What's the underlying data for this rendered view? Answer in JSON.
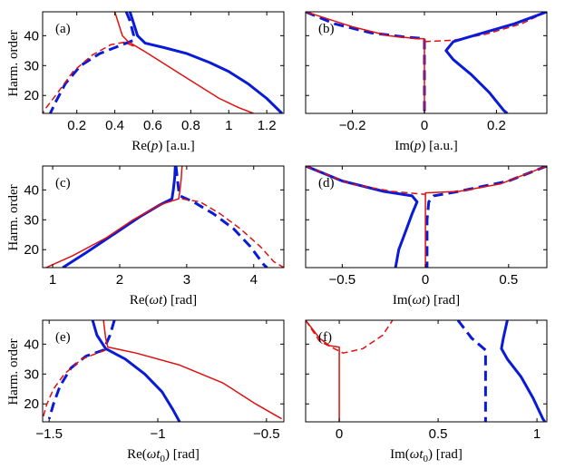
{
  "figure": {
    "ylabel": "Harm. order"
  },
  "colors": {
    "blue": "#0a1bd8",
    "red": "#e01010"
  },
  "chart_data": [
    {
      "type": "line",
      "tag": "(a)",
      "xlabel_pre": "Re(",
      "xlabel_var": "p",
      "xlabel_post": ") [a.u.]",
      "xlim": [
        0.02,
        1.29
      ],
      "ylim": [
        14,
        48
      ],
      "xticks": [
        0.2,
        0.4,
        0.6,
        0.8,
        1,
        1.2
      ],
      "xtick_labels": [
        "0.2",
        "0.4",
        "0.6",
        "0.8",
        "1",
        "1.2"
      ],
      "yticks": [
        20,
        30,
        40
      ],
      "ytick_labels": [
        "20",
        "30",
        "40"
      ],
      "series": [
        {
          "name": "blue solid",
          "color": "blue",
          "dash": false,
          "width": 3,
          "points": [
            [
              0.48,
              48
            ],
            [
              0.5,
              44
            ],
            [
              0.52,
              40
            ],
            [
              0.56,
              37.5
            ],
            [
              0.66,
              36
            ],
            [
              0.78,
              34
            ],
            [
              0.9,
              31
            ],
            [
              1.0,
              28
            ],
            [
              1.1,
              24
            ],
            [
              1.2,
              19
            ],
            [
              1.28,
              14
            ]
          ]
        },
        {
          "name": "blue dashed",
          "color": "blue",
          "dash": true,
          "width": 3,
          "points": [
            [
              0.46,
              48
            ],
            [
              0.48,
              45
            ],
            [
              0.5,
              40
            ],
            [
              0.5,
              38.5
            ],
            [
              0.44,
              37
            ],
            [
              0.32,
              34
            ],
            [
              0.22,
              30
            ],
            [
              0.14,
              24
            ],
            [
              0.09,
              18
            ],
            [
              0.06,
              14
            ]
          ]
        },
        {
          "name": "red solid",
          "color": "red",
          "dash": false,
          "width": 1.5,
          "points": [
            [
              0.4,
              48
            ],
            [
              0.42,
              44
            ],
            [
              0.44,
              40
            ],
            [
              0.47,
              38
            ],
            [
              0.55,
              35
            ],
            [
              0.65,
              31
            ],
            [
              0.75,
              27
            ],
            [
              0.85,
              23
            ],
            [
              0.95,
              19
            ],
            [
              1.05,
              16
            ],
            [
              1.13,
              14
            ]
          ]
        },
        {
          "name": "red dashed",
          "color": "red",
          "dash": true,
          "width": 1.5,
          "points": [
            [
              0.5,
              36.5
            ],
            [
              0.45,
              37.8
            ],
            [
              0.38,
              37
            ],
            [
              0.28,
              33.5
            ],
            [
              0.18,
              28
            ],
            [
              0.1,
              21
            ],
            [
              0.04,
              16
            ],
            [
              0.02,
              14
            ]
          ]
        }
      ]
    },
    {
      "type": "line",
      "tag": "(b)",
      "xlabel_pre": "Im(",
      "xlabel_var": "p",
      "xlabel_post": ") [a.u.]",
      "xlim": [
        -0.33,
        0.34
      ],
      "ylim": [
        14,
        48
      ],
      "xticks": [
        -0.2,
        0,
        0.2
      ],
      "xtick_labels": [
        "−0.2",
        "0",
        "0.2"
      ],
      "yticks": [
        20,
        30,
        40
      ],
      "ytick_labels": [
        "20",
        "30",
        "40"
      ],
      "series": [
        {
          "name": "blue dashed",
          "color": "blue",
          "dash": true,
          "width": 3,
          "points": [
            [
              -0.33,
              48
            ],
            [
              -0.25,
              44
            ],
            [
              -0.15,
              41
            ],
            [
              -0.05,
              39.5
            ],
            [
              0.0,
              39
            ],
            [
              0.0,
              35
            ],
            [
              0.0,
              25
            ],
            [
              0.0,
              14
            ]
          ]
        },
        {
          "name": "red solid",
          "color": "red",
          "dash": false,
          "width": 1.5,
          "points": [
            [
              -0.33,
              48
            ],
            [
              -0.2,
              43
            ],
            [
              -0.1,
              40
            ],
            [
              -0.02,
              39
            ],
            [
              0.0,
              39
            ],
            [
              0.0,
              30
            ],
            [
              0.0,
              14
            ]
          ]
        },
        {
          "name": "red dashed",
          "color": "red",
          "dash": true,
          "width": 1.5,
          "points": [
            [
              0.0,
              38
            ],
            [
              0.08,
              38.5
            ],
            [
              0.17,
              40.5
            ],
            [
              0.27,
              44
            ],
            [
              0.34,
              48
            ]
          ]
        },
        {
          "name": "blue solid",
          "color": "blue",
          "dash": false,
          "width": 3,
          "points": [
            [
              0.34,
              48
            ],
            [
              0.25,
              44
            ],
            [
              0.15,
              40.5
            ],
            [
              0.08,
              38
            ],
            [
              0.06,
              35
            ],
            [
              0.08,
              32
            ],
            [
              0.13,
              27
            ],
            [
              0.18,
              21
            ],
            [
              0.22,
              15
            ],
            [
              0.23,
              14
            ]
          ]
        }
      ]
    },
    {
      "type": "line",
      "tag": "(c)",
      "xlabel_pre": "Re(",
      "xlabel_var": "ωt",
      "xlabel_post": ") [rad]",
      "xlim": [
        0.85,
        4.45
      ],
      "ylim": [
        14,
        48
      ],
      "xticks": [
        1,
        2,
        3,
        4
      ],
      "xtick_labels": [
        "1",
        "2",
        "3",
        "4"
      ],
      "yticks": [
        20,
        30,
        40
      ],
      "ytick_labels": [
        "20",
        "30",
        "40"
      ],
      "series": [
        {
          "name": "blue solid",
          "color": "blue",
          "dash": false,
          "width": 3,
          "points": [
            [
              1.15,
              14
            ],
            [
              1.5,
              19
            ],
            [
              1.9,
              25
            ],
            [
              2.3,
              31
            ],
            [
              2.6,
              35
            ],
            [
              2.78,
              37
            ],
            [
              2.8,
              40
            ],
            [
              2.82,
              44
            ],
            [
              2.83,
              48
            ]
          ]
        },
        {
          "name": "blue dashed",
          "color": "blue",
          "dash": true,
          "width": 3,
          "points": [
            [
              2.84,
              48
            ],
            [
              2.86,
              44
            ],
            [
              2.88,
              40
            ],
            [
              2.9,
              38
            ],
            [
              3.1,
              36
            ],
            [
              3.4,
              32
            ],
            [
              3.7,
              27
            ],
            [
              3.95,
              21
            ],
            [
              4.15,
              15
            ],
            [
              4.2,
              14
            ]
          ]
        },
        {
          "name": "red solid",
          "color": "red",
          "dash": false,
          "width": 1.5,
          "points": [
            [
              0.9,
              14
            ],
            [
              1.3,
              18
            ],
            [
              1.8,
              24
            ],
            [
              2.2,
              30
            ],
            [
              2.6,
              35
            ],
            [
              2.88,
              37
            ],
            [
              2.9,
              40
            ],
            [
              2.92,
              44
            ],
            [
              2.93,
              48
            ]
          ]
        },
        {
          "name": "red dashed",
          "color": "red",
          "dash": true,
          "width": 1.5,
          "points": [
            [
              2.93,
              37
            ],
            [
              3.2,
              36
            ],
            [
              3.5,
              32
            ],
            [
              3.8,
              27
            ],
            [
              4.1,
              21
            ],
            [
              4.3,
              16
            ],
            [
              4.45,
              14
            ]
          ]
        }
      ]
    },
    {
      "type": "line",
      "tag": "(d)",
      "xlabel_pre": "Im(",
      "xlabel_var": "ωt",
      "xlabel_post": ") [rad]",
      "xlim": [
        -0.72,
        0.73
      ],
      "ylim": [
        14,
        48
      ],
      "xticks": [
        -0.5,
        0,
        0.5
      ],
      "xtick_labels": [
        "−0.5",
        "0",
        "0.5"
      ],
      "yticks": [
        20,
        30,
        40
      ],
      "ytick_labels": [
        "20",
        "30",
        "40"
      ],
      "series": [
        {
          "name": "blue solid",
          "color": "blue",
          "dash": false,
          "width": 3,
          "points": [
            [
              -0.72,
              48
            ],
            [
              -0.5,
              43
            ],
            [
              -0.25,
              39.5
            ],
            [
              -0.08,
              38
            ],
            [
              -0.05,
              36
            ],
            [
              -0.08,
              32
            ],
            [
              -0.12,
              26
            ],
            [
              -0.16,
              20
            ],
            [
              -0.18,
              14
            ]
          ]
        },
        {
          "name": "blue dashed",
          "color": "blue",
          "dash": true,
          "width": 3,
          "points": [
            [
              0.73,
              48
            ],
            [
              0.5,
              43
            ],
            [
              0.2,
              39.5
            ],
            [
              0.05,
              38
            ],
            [
              0.02,
              36
            ],
            [
              0.01,
              30
            ],
            [
              0.01,
              14
            ]
          ]
        },
        {
          "name": "red solid",
          "color": "red",
          "dash": false,
          "width": 1.5,
          "points": [
            [
              0.73,
              48
            ],
            [
              0.45,
              42
            ],
            [
              0.2,
              39.5
            ],
            [
              0.0,
              39
            ],
            [
              0.0,
              30
            ],
            [
              0.0,
              14
            ]
          ]
        },
        {
          "name": "red dashed",
          "color": "red",
          "dash": true,
          "width": 1.5,
          "points": [
            [
              -0.72,
              48
            ],
            [
              -0.45,
              42
            ],
            [
              -0.2,
              39.5
            ],
            [
              0.0,
              38.5
            ]
          ]
        }
      ]
    },
    {
      "type": "line",
      "tag": "(e)",
      "xlabel_pre": "Re(",
      "xlabel_var": "ωt",
      "xlabel_sub": "0",
      "xlabel_post": ") [rad]",
      "xlim": [
        -1.53,
        -0.42
      ],
      "ylim": [
        14,
        48
      ],
      "xticks": [
        -1.5,
        -1,
        -0.5
      ],
      "xtick_labels": [
        "−1.5",
        "−1",
        "−0.5"
      ],
      "yticks": [
        20,
        30,
        40
      ],
      "ytick_labels": [
        "20",
        "30",
        "40"
      ],
      "series": [
        {
          "name": "blue solid",
          "color": "blue",
          "dash": false,
          "width": 3,
          "points": [
            [
              -1.3,
              48
            ],
            [
              -1.28,
              43
            ],
            [
              -1.24,
              38.5
            ],
            [
              -1.15,
              35
            ],
            [
              -1.06,
              30
            ],
            [
              -0.98,
              24
            ],
            [
              -0.93,
              18
            ],
            [
              -0.9,
              14
            ]
          ]
        },
        {
          "name": "blue dashed",
          "color": "blue",
          "dash": true,
          "width": 3,
          "points": [
            [
              -1.2,
              48
            ],
            [
              -1.22,
              43
            ],
            [
              -1.25,
              38
            ],
            [
              -1.33,
              36
            ],
            [
              -1.4,
              32
            ],
            [
              -1.45,
              26
            ],
            [
              -1.48,
              20
            ],
            [
              -1.5,
              15
            ]
          ]
        },
        {
          "name": "red solid",
          "color": "red",
          "dash": false,
          "width": 1.5,
          "points": [
            [
              -1.25,
              48
            ],
            [
              -1.24,
              42
            ],
            [
              -1.23,
              39
            ],
            [
              -1.1,
              37
            ],
            [
              -0.9,
              33
            ],
            [
              -0.7,
              27
            ],
            [
              -0.55,
              20
            ],
            [
              -0.43,
              15
            ]
          ]
        },
        {
          "name": "red dashed",
          "color": "red",
          "dash": true,
          "width": 1.5,
          "points": [
            [
              -1.24,
              38
            ],
            [
              -1.35,
              35
            ],
            [
              -1.43,
              30
            ],
            [
              -1.48,
              25
            ],
            [
              -1.51,
              20
            ],
            [
              -1.53,
              15
            ]
          ]
        }
      ]
    },
    {
      "type": "line",
      "tag": "(f)",
      "xlabel_pre": "Im(",
      "xlabel_var": "ωt",
      "xlabel_sub": "0",
      "xlabel_post": ") [rad]",
      "xlim": [
        -0.17,
        1.05
      ],
      "ylim": [
        14,
        48
      ],
      "xticks": [
        0,
        0.5,
        1
      ],
      "xtick_labels": [
        "0",
        "0.5",
        "1"
      ],
      "yticks": [
        20,
        30,
        40
      ],
      "ytick_labels": [
        "20",
        "30",
        "40"
      ],
      "series": [
        {
          "name": "red solid",
          "color": "red",
          "dash": false,
          "width": 1.5,
          "points": [
            [
              -0.17,
              48
            ],
            [
              -0.1,
              42
            ],
            [
              -0.05,
              39.5
            ],
            [
              0.0,
              39
            ],
            [
              0.0,
              30
            ],
            [
              0.0,
              14
            ]
          ]
        },
        {
          "name": "red dashed",
          "color": "red",
          "dash": true,
          "width": 1.5,
          "points": [
            [
              -0.17,
              48
            ],
            [
              -0.1,
              41
            ],
            [
              0.02,
              37
            ],
            [
              0.12,
              38.5
            ],
            [
              0.22,
              43
            ],
            [
              0.27,
              48
            ]
          ]
        },
        {
          "name": "blue dashed",
          "color": "blue",
          "dash": true,
          "width": 3,
          "points": [
            [
              0.6,
              48
            ],
            [
              0.67,
              42
            ],
            [
              0.74,
              38
            ],
            [
              0.74,
              34
            ],
            [
              0.74,
              25
            ],
            [
              0.74,
              14
            ]
          ]
        },
        {
          "name": "blue solid",
          "color": "blue",
          "dash": false,
          "width": 3,
          "points": [
            [
              0.85,
              48
            ],
            [
              0.83,
              42
            ],
            [
              0.82,
              38.5
            ],
            [
              0.85,
              35
            ],
            [
              0.92,
              29
            ],
            [
              0.98,
              22
            ],
            [
              1.03,
              15
            ],
            [
              1.04,
              14
            ]
          ]
        }
      ]
    }
  ]
}
